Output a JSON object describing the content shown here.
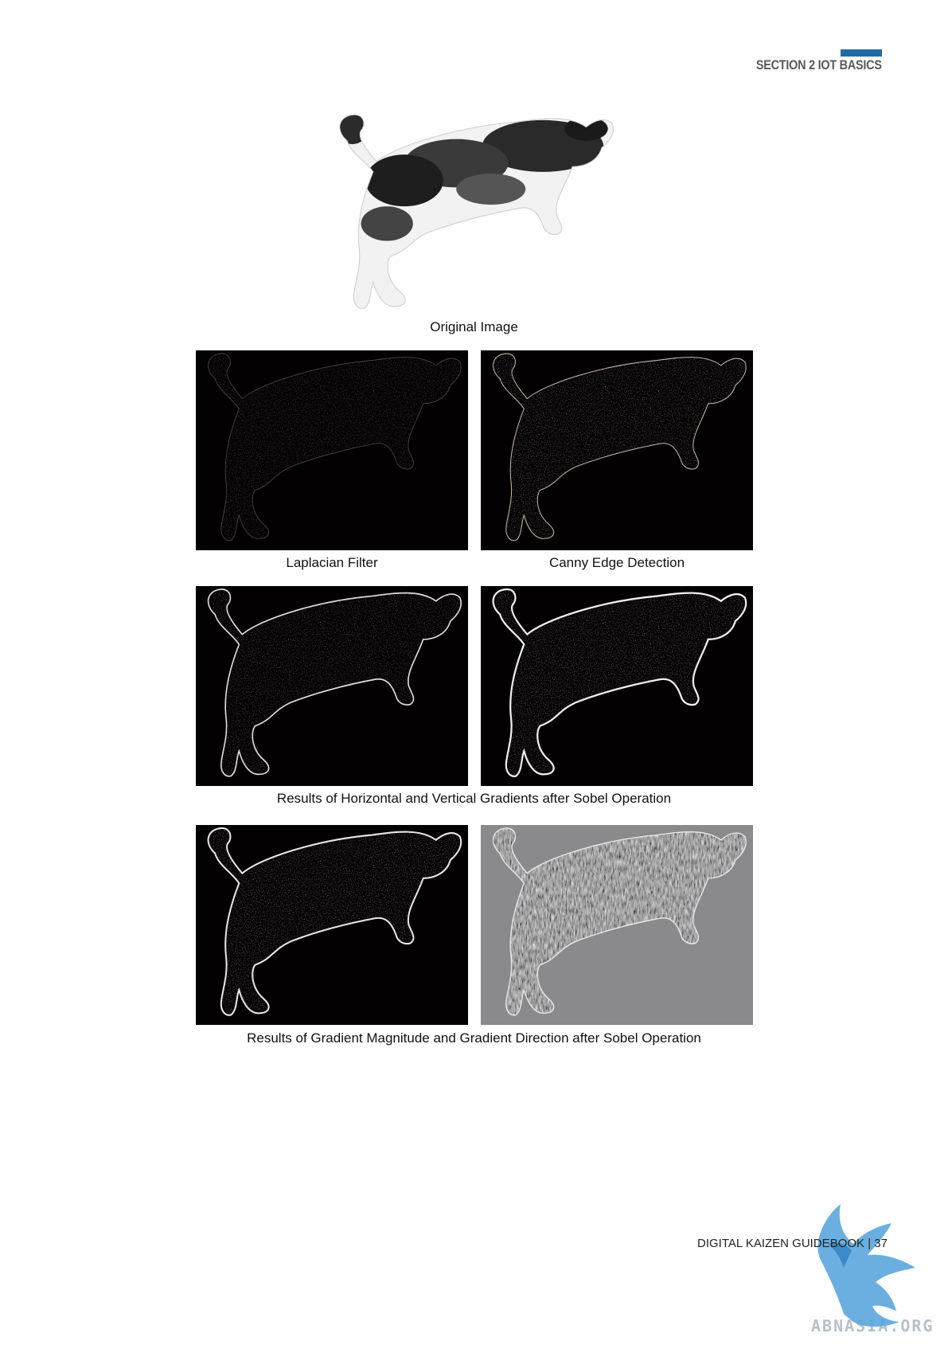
{
  "header": {
    "section_label": "SECTION 2  IOT BASICS",
    "accent_color": "#1f6aa5"
  },
  "figures": {
    "original": {
      "caption": "Original Image",
      "icon": "cat-photo"
    },
    "laplacian": {
      "caption": "Laplacian Filter",
      "icon": "cat-edge-map"
    },
    "canny": {
      "caption": "Canny Edge Detection",
      "icon": "cat-edge-map"
    },
    "sobel_hv": {
      "caption": "Results of Horizontal and Vertical Gradients after Sobel Operation",
      "icon": "cat-edge-map"
    },
    "sobel_md": {
      "caption": "Results of Gradient Magnitude and Gradient Direction after Sobel Operation",
      "icon": "cat-edge-map"
    }
  },
  "footer": {
    "text": "DIGITAL KAIZEN GUIDEBOOK | 37"
  },
  "watermark": {
    "text": "ABNASIA.ORG",
    "icon": "griffin-logo",
    "color": "#5aa6dc"
  }
}
